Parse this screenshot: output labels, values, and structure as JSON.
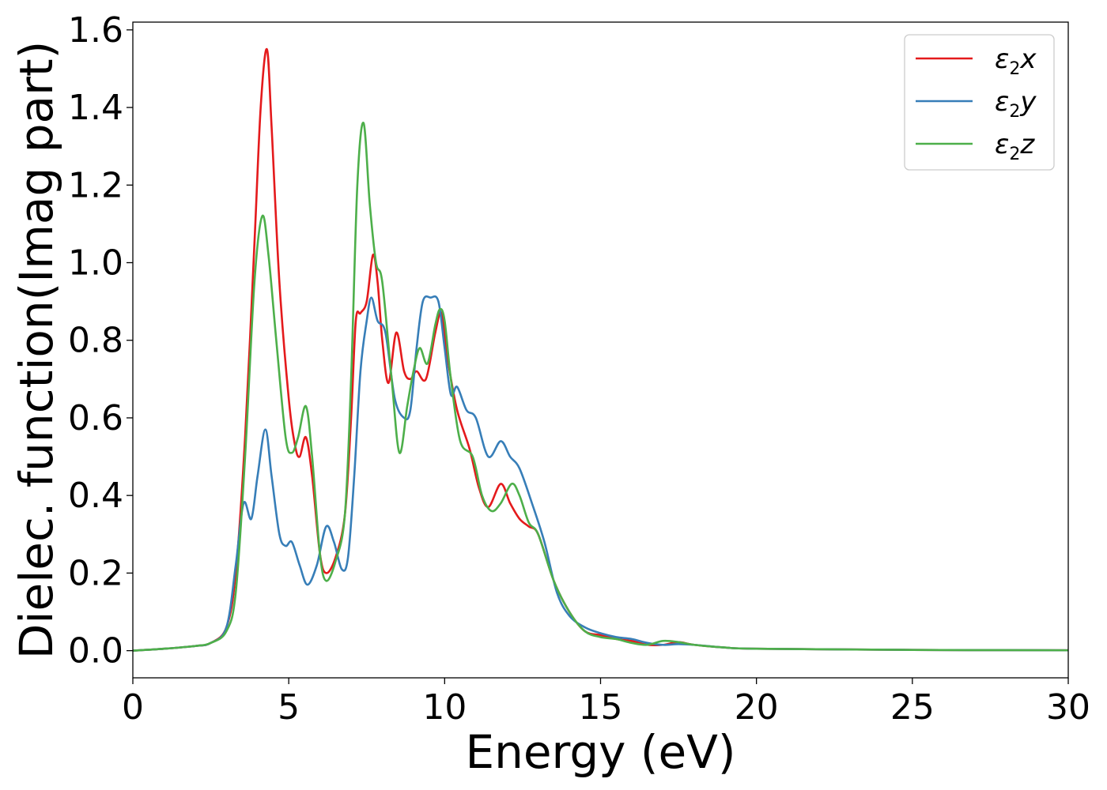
{
  "chart_data": {
    "type": "line",
    "title": "",
    "xlabel": "Energy (eV)",
    "ylabel": "Dielec. function(Imag part)",
    "xlim": [
      0,
      30
    ],
    "ylim": [
      -0.07,
      1.62
    ],
    "xticks": [
      "0",
      "5",
      "10",
      "15",
      "20",
      "25",
      "30"
    ],
    "yticks": [
      "0.0",
      "0.2",
      "0.4",
      "0.6",
      "0.8",
      "1.0",
      "1.2",
      "1.4",
      "1.6"
    ],
    "grid": false,
    "legend_position": "top-right",
    "series": [
      {
        "name": "ε2x",
        "label_base": "ε",
        "label_sub": "2",
        "label_tail": "x",
        "color": "#e41a1c",
        "points": [
          [
            0,
            0
          ],
          [
            1,
            0.005
          ],
          [
            2,
            0.012
          ],
          [
            2.5,
            0.02
          ],
          [
            3,
            0.06
          ],
          [
            3.3,
            0.2
          ],
          [
            3.6,
            0.55
          ],
          [
            3.9,
            1.05
          ],
          [
            4.1,
            1.4
          ],
          [
            4.3,
            1.55
          ],
          [
            4.45,
            1.35
          ],
          [
            4.7,
            0.95
          ],
          [
            5.0,
            0.65
          ],
          [
            5.2,
            0.53
          ],
          [
            5.35,
            0.5
          ],
          [
            5.55,
            0.55
          ],
          [
            5.75,
            0.45
          ],
          [
            6.0,
            0.25
          ],
          [
            6.2,
            0.2
          ],
          [
            6.5,
            0.24
          ],
          [
            6.8,
            0.35
          ],
          [
            7.0,
            0.6
          ],
          [
            7.15,
            0.85
          ],
          [
            7.3,
            0.87
          ],
          [
            7.5,
            0.9
          ],
          [
            7.7,
            1.02
          ],
          [
            7.85,
            0.95
          ],
          [
            8.0,
            0.8
          ],
          [
            8.2,
            0.69
          ],
          [
            8.45,
            0.82
          ],
          [
            8.7,
            0.72
          ],
          [
            8.9,
            0.7
          ],
          [
            9.1,
            0.72
          ],
          [
            9.4,
            0.7
          ],
          [
            9.7,
            0.82
          ],
          [
            9.9,
            0.87
          ],
          [
            10.1,
            0.75
          ],
          [
            10.4,
            0.62
          ],
          [
            10.8,
            0.52
          ],
          [
            11.1,
            0.42
          ],
          [
            11.4,
            0.37
          ],
          [
            11.8,
            0.43
          ],
          [
            12.1,
            0.38
          ],
          [
            12.4,
            0.34
          ],
          [
            12.7,
            0.32
          ],
          [
            13.0,
            0.3
          ],
          [
            13.5,
            0.18
          ],
          [
            14.0,
            0.1
          ],
          [
            14.5,
            0.05
          ],
          [
            15.0,
            0.04
          ],
          [
            15.5,
            0.03
          ],
          [
            16.0,
            0.025
          ],
          [
            16.5,
            0.015
          ],
          [
            17.0,
            0.015
          ],
          [
            17.5,
            0.022
          ],
          [
            18.0,
            0.015
          ],
          [
            19.0,
            0.008
          ],
          [
            20.0,
            0.005
          ],
          [
            25.0,
            0.002
          ],
          [
            30.0,
            0.001
          ]
        ]
      },
      {
        "name": "ε2y",
        "label_base": "ε",
        "label_sub": "2",
        "label_tail": "y",
        "color": "#377eb8",
        "points": [
          [
            0,
            0
          ],
          [
            1,
            0.005
          ],
          [
            2,
            0.012
          ],
          [
            2.5,
            0.02
          ],
          [
            3,
            0.06
          ],
          [
            3.3,
            0.22
          ],
          [
            3.55,
            0.38
          ],
          [
            3.8,
            0.34
          ],
          [
            4.0,
            0.45
          ],
          [
            4.25,
            0.57
          ],
          [
            4.45,
            0.45
          ],
          [
            4.7,
            0.3
          ],
          [
            4.9,
            0.27
          ],
          [
            5.1,
            0.28
          ],
          [
            5.35,
            0.22
          ],
          [
            5.6,
            0.17
          ],
          [
            5.9,
            0.22
          ],
          [
            6.2,
            0.32
          ],
          [
            6.45,
            0.28
          ],
          [
            6.7,
            0.21
          ],
          [
            6.9,
            0.24
          ],
          [
            7.1,
            0.45
          ],
          [
            7.3,
            0.72
          ],
          [
            7.5,
            0.85
          ],
          [
            7.65,
            0.91
          ],
          [
            7.85,
            0.85
          ],
          [
            8.1,
            0.82
          ],
          [
            8.4,
            0.65
          ],
          [
            8.7,
            0.6
          ],
          [
            8.9,
            0.62
          ],
          [
            9.1,
            0.78
          ],
          [
            9.3,
            0.9
          ],
          [
            9.55,
            0.91
          ],
          [
            9.8,
            0.9
          ],
          [
            10.0,
            0.78
          ],
          [
            10.2,
            0.66
          ],
          [
            10.4,
            0.68
          ],
          [
            10.7,
            0.62
          ],
          [
            11.0,
            0.6
          ],
          [
            11.4,
            0.5
          ],
          [
            11.8,
            0.54
          ],
          [
            12.1,
            0.5
          ],
          [
            12.4,
            0.47
          ],
          [
            12.8,
            0.38
          ],
          [
            13.2,
            0.28
          ],
          [
            13.6,
            0.15
          ],
          [
            14.0,
            0.09
          ],
          [
            14.5,
            0.06
          ],
          [
            15.0,
            0.045
          ],
          [
            15.5,
            0.035
          ],
          [
            16.0,
            0.03
          ],
          [
            16.5,
            0.02
          ],
          [
            17.0,
            0.015
          ],
          [
            17.5,
            0.017
          ],
          [
            18.0,
            0.015
          ],
          [
            19.0,
            0.008
          ],
          [
            20.0,
            0.005
          ],
          [
            25.0,
            0.002
          ],
          [
            30.0,
            0.001
          ]
        ]
      },
      {
        "name": "ε2z",
        "label_base": "ε",
        "label_sub": "2",
        "label_tail": "z",
        "color": "#4daf4a",
        "points": [
          [
            0,
            0
          ],
          [
            1,
            0.005
          ],
          [
            2,
            0.012
          ],
          [
            2.5,
            0.02
          ],
          [
            3,
            0.05
          ],
          [
            3.3,
            0.15
          ],
          [
            3.6,
            0.5
          ],
          [
            3.9,
            0.95
          ],
          [
            4.15,
            1.12
          ],
          [
            4.35,
            1.02
          ],
          [
            4.6,
            0.8
          ],
          [
            4.9,
            0.55
          ],
          [
            5.1,
            0.51
          ],
          [
            5.3,
            0.55
          ],
          [
            5.55,
            0.63
          ],
          [
            5.75,
            0.5
          ],
          [
            6.0,
            0.25
          ],
          [
            6.2,
            0.18
          ],
          [
            6.5,
            0.23
          ],
          [
            6.8,
            0.35
          ],
          [
            7.0,
            0.7
          ],
          [
            7.2,
            1.2
          ],
          [
            7.4,
            1.36
          ],
          [
            7.6,
            1.15
          ],
          [
            7.8,
            1.0
          ],
          [
            8.0,
            0.95
          ],
          [
            8.3,
            0.7
          ],
          [
            8.55,
            0.51
          ],
          [
            8.8,
            0.63
          ],
          [
            9.0,
            0.72
          ],
          [
            9.2,
            0.78
          ],
          [
            9.45,
            0.74
          ],
          [
            9.7,
            0.84
          ],
          [
            9.85,
            0.88
          ],
          [
            10.0,
            0.85
          ],
          [
            10.2,
            0.7
          ],
          [
            10.5,
            0.54
          ],
          [
            10.9,
            0.5
          ],
          [
            11.2,
            0.4
          ],
          [
            11.5,
            0.36
          ],
          [
            11.8,
            0.38
          ],
          [
            12.15,
            0.43
          ],
          [
            12.4,
            0.4
          ],
          [
            12.7,
            0.33
          ],
          [
            13.0,
            0.3
          ],
          [
            13.5,
            0.18
          ],
          [
            14.0,
            0.1
          ],
          [
            14.5,
            0.05
          ],
          [
            15.0,
            0.035
          ],
          [
            15.5,
            0.03
          ],
          [
            16.0,
            0.02
          ],
          [
            16.5,
            0.015
          ],
          [
            17.0,
            0.025
          ],
          [
            17.5,
            0.022
          ],
          [
            18.0,
            0.015
          ],
          [
            19.0,
            0.008
          ],
          [
            20.0,
            0.005
          ],
          [
            25.0,
            0.002
          ],
          [
            30.0,
            0.001
          ]
        ]
      }
    ]
  }
}
